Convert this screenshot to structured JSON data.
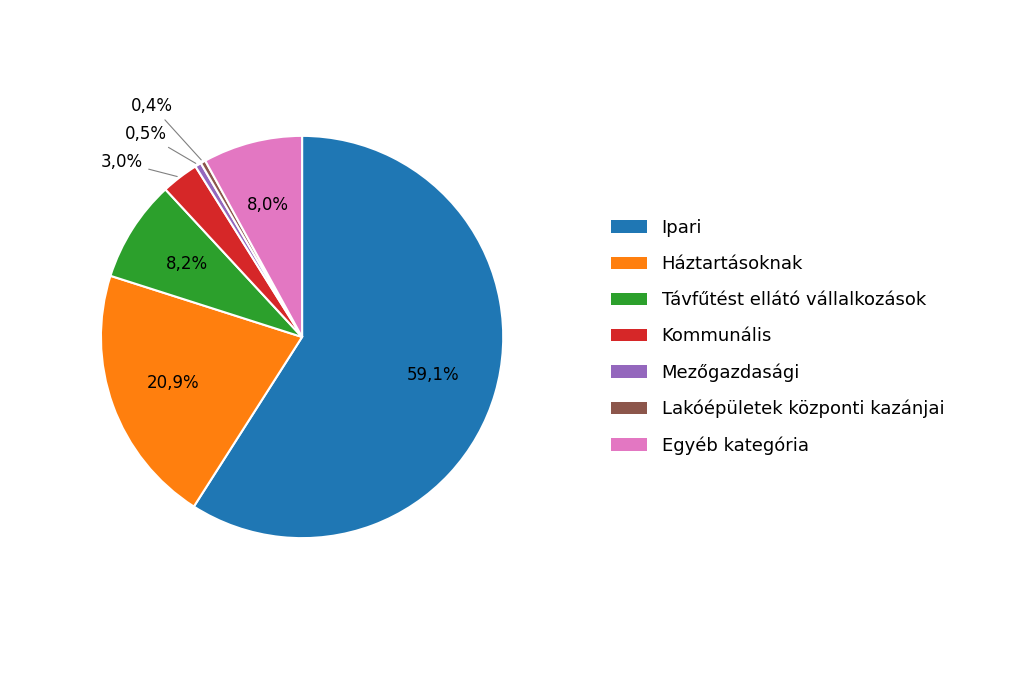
{
  "chart_data": {
    "type": "pie",
    "categories": [
      "Ipari",
      "Háztartásoknak",
      "Távfűtést ellátó vállalkozások",
      "Kommunális",
      "Mezőgazdasági",
      "Lakóépületek központi kazánjai",
      "Egyéb kategória"
    ],
    "values": [
      59.1,
      20.9,
      8.2,
      3.0,
      0.5,
      0.4,
      8.0
    ],
    "value_labels": [
      "59,1%",
      "20,9%",
      "8,2%",
      "3,0%",
      "0,5%",
      "0,4%",
      "8,0%"
    ],
    "data_labels": true,
    "legend": "center left"
  }
}
